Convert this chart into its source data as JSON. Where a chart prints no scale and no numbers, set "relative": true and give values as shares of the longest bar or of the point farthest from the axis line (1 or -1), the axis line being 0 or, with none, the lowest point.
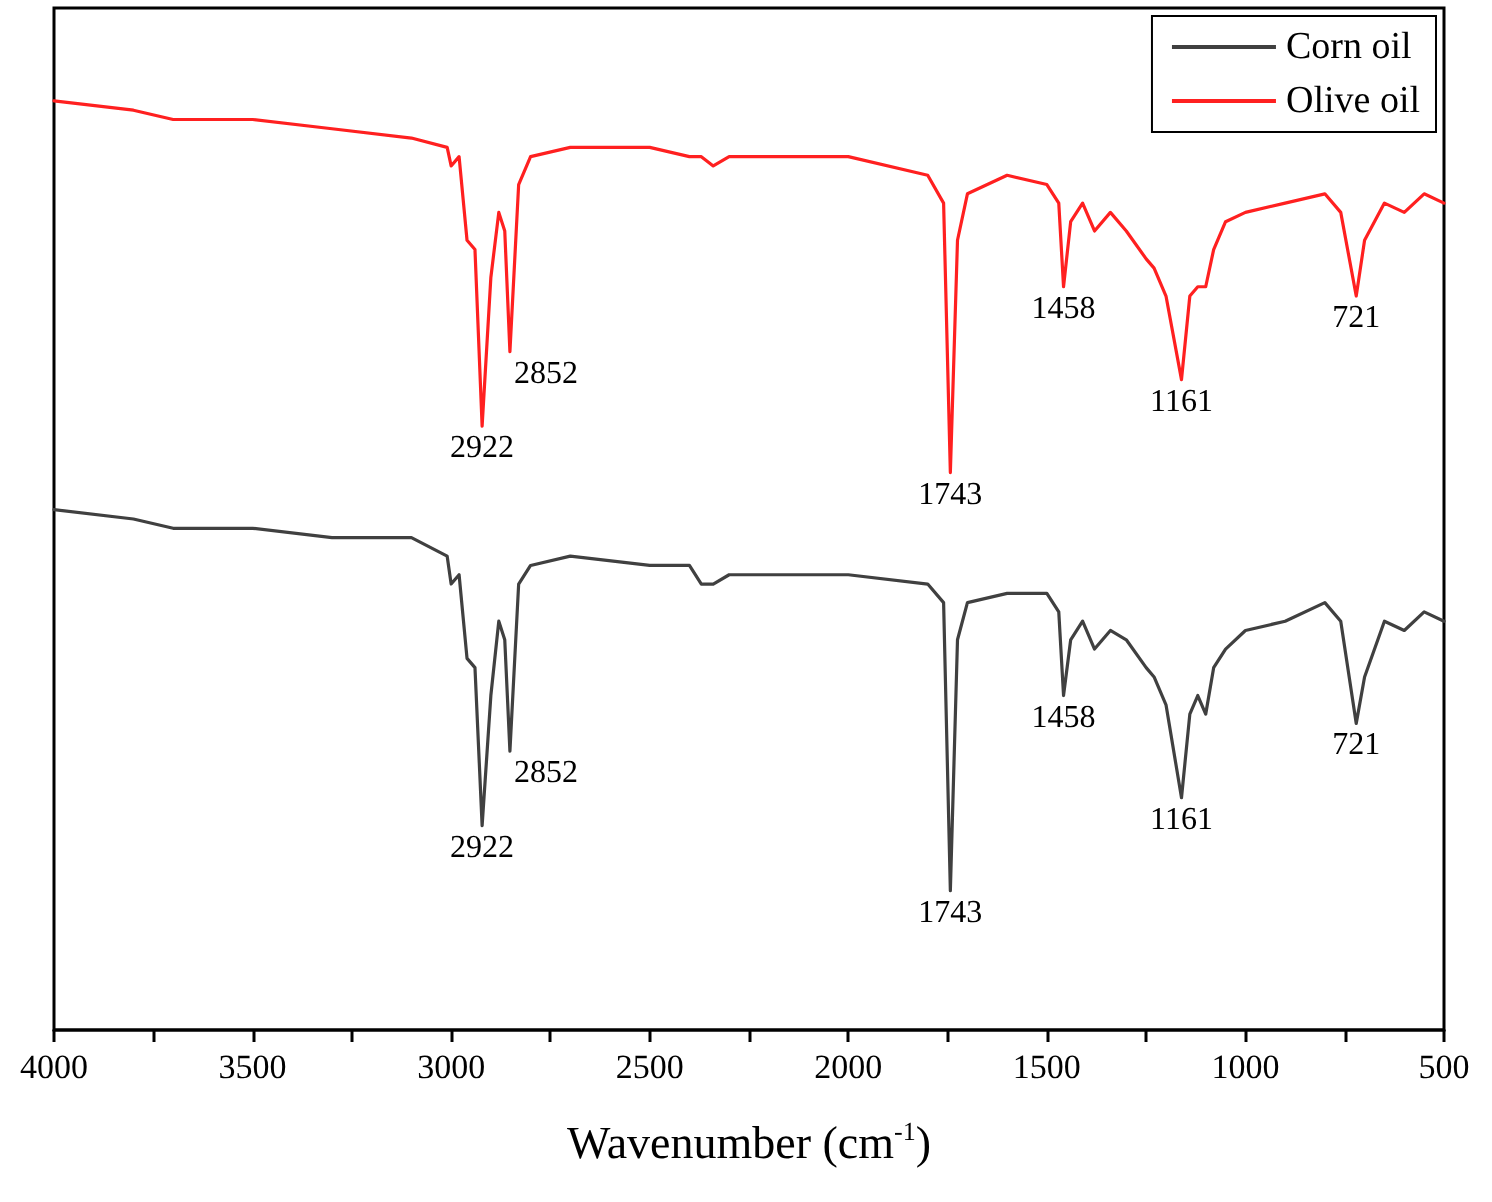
{
  "chart_data": {
    "type": "line",
    "xlabel": "Wavenumber (cm$^{-1}$)",
    "relative": true,
    "legend": "top right",
    "grid": false,
    "marker": "none",
    "line_style": "solid",
    "x": [
      4000,
      3800,
      3700,
      3500,
      3300,
      3100,
      3010,
      3000,
      2980,
      2960,
      2940,
      2922,
      2900,
      2880,
      2865,
      2852,
      2830,
      2800,
      2700,
      2500,
      2400,
      2370,
      2340,
      2300,
      2200,
      2000,
      1800,
      1760,
      1743,
      1725,
      1700,
      1600,
      1500,
      1470,
      1458,
      1440,
      1410,
      1380,
      1340,
      1300,
      1250,
      1230,
      1200,
      1161,
      1140,
      1120,
      1100,
      1080,
      1050,
      1000,
      900,
      800,
      760,
      721,
      700,
      650,
      600,
      550,
      500
    ],
    "xlim": [
      4000,
      500
    ],
    "xticks": [
      4000,
      {
        "value": 3750,
        "label": null
      },
      3500,
      {
        "value": 3250,
        "label": null
      },
      3000,
      {
        "value": 2750,
        "label": null
      },
      2500,
      {
        "value": 2250,
        "label": null
      },
      2000,
      {
        "value": 1750,
        "label": null
      },
      1500,
      {
        "value": 1250,
        "label": null
      },
      1000,
      {
        "value": 750,
        "label": null
      },
      500
    ],
    "series": [
      {
        "name": "Corn oil",
        "color": "#404040",
        "values": [
          0.56,
          0.55,
          0.54,
          0.54,
          0.53,
          0.53,
          0.51,
          0.48,
          0.49,
          0.4,
          0.39,
          0.22,
          0.36,
          0.44,
          0.42,
          0.3,
          0.48,
          0.5,
          0.51,
          0.5,
          0.5,
          0.48,
          0.48,
          0.49,
          0.49,
          0.49,
          0.48,
          0.46,
          0.15,
          0.42,
          0.46,
          0.47,
          0.47,
          0.45,
          0.36,
          0.42,
          0.44,
          0.41,
          0.43,
          0.42,
          0.39,
          0.38,
          0.35,
          0.25,
          0.34,
          0.36,
          0.34,
          0.39,
          0.41,
          0.43,
          0.44,
          0.46,
          0.44,
          0.33,
          0.38,
          0.44,
          0.43,
          0.45,
          0.44
        ]
      },
      {
        "name": "Olive oil",
        "color": "#ff2020",
        "values": [
          1.0,
          0.99,
          0.98,
          0.98,
          0.97,
          0.96,
          0.95,
          0.93,
          0.94,
          0.85,
          0.84,
          0.65,
          0.81,
          0.88,
          0.86,
          0.73,
          0.91,
          0.94,
          0.95,
          0.95,
          0.94,
          0.94,
          0.93,
          0.94,
          0.94,
          0.94,
          0.92,
          0.89,
          0.6,
          0.85,
          0.9,
          0.92,
          0.91,
          0.89,
          0.8,
          0.87,
          0.89,
          0.86,
          0.88,
          0.86,
          0.83,
          0.82,
          0.79,
          0.7,
          0.79,
          0.8,
          0.8,
          0.84,
          0.87,
          0.88,
          0.89,
          0.9,
          0.88,
          0.79,
          0.85,
          0.89,
          0.88,
          0.9,
          0.89
        ]
      }
    ],
    "annotations": [
      {
        "text": "2922",
        "x": 2922,
        "y": 0.65
      },
      {
        "text": "2852",
        "x": 2852,
        "y": 0.73
      },
      {
        "text": "1743",
        "x": 1743,
        "y": 0.6
      },
      {
        "text": "1458",
        "x": 1458,
        "y": 0.8
      },
      {
        "text": "1161",
        "x": 1161,
        "y": 0.7
      },
      {
        "text": "721",
        "x": 721,
        "y": 0.79
      },
      {
        "text": "2922",
        "x": 2922,
        "y": 0.22
      },
      {
        "text": "2852",
        "x": 2852,
        "y": 0.3
      },
      {
        "text": "1743",
        "x": 1743,
        "y": 0.15
      },
      {
        "text": "1458",
        "x": 1458,
        "y": 0.36
      },
      {
        "text": "1161",
        "x": 1161,
        "y": 0.25
      },
      {
        "text": "721",
        "x": 721,
        "y": 0.33
      }
    ]
  }
}
